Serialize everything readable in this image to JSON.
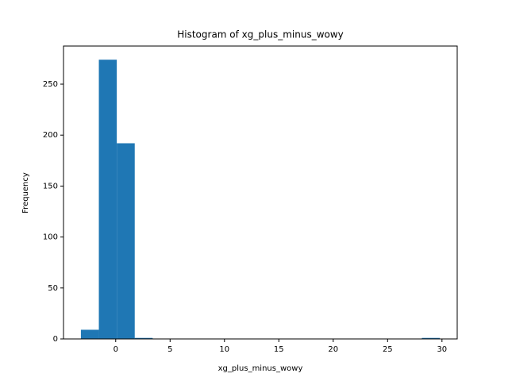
{
  "chart_data": {
    "type": "histogram",
    "title": "Histogram of xg_plus_minus_wowy",
    "x_label": "xg_plus_minus_wowy",
    "y_label": "Frequency",
    "bins": [
      -3.2,
      -1.55,
      0.1,
      1.75,
      3.4,
      5.05,
      6.7,
      8.35,
      10.0,
      11.65,
      13.3,
      14.95,
      16.6,
      18.25,
      19.9,
      21.55,
      23.2,
      24.85,
      26.5,
      28.15,
      29.8
    ],
    "counts": [
      9,
      274,
      192,
      1,
      0,
      0,
      0,
      0,
      0,
      0,
      0,
      0,
      0,
      0,
      0,
      0,
      0,
      0,
      0,
      1
    ],
    "color": "#1f77b4",
    "xlim": [
      -4.8,
      31.4
    ],
    "ylim": [
      0,
      287.4
    ],
    "xticks": [
      0,
      5,
      10,
      15,
      20,
      25,
      30
    ],
    "yticks": [
      0,
      50,
      100,
      150,
      200,
      250
    ]
  }
}
